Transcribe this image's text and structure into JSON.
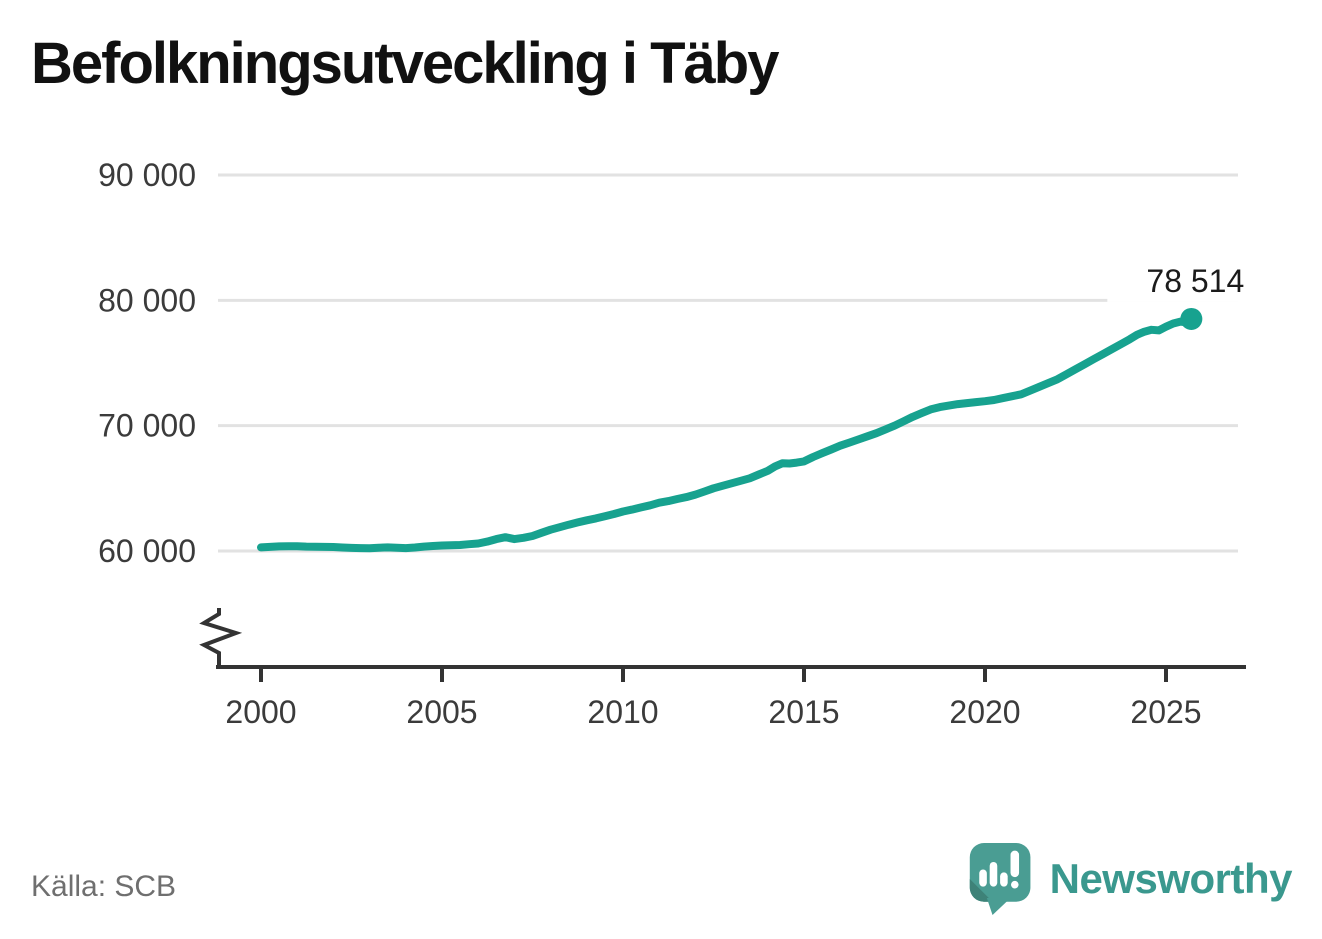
{
  "title": "Befolkningsutveckling i Täby",
  "source": "Källa: SCB",
  "brand": {
    "name": "Newsworthy"
  },
  "colors": {
    "line": "#17A28F",
    "grid": "#E2E2E2",
    "axis": "#333333",
    "tick_text": "#3B3B3B",
    "label_text": "#1B1B1B",
    "muted_text": "#6F6F6F",
    "logo_bubble": "#4A9D93",
    "logo_bubble_shade": "#3E8278",
    "brand_text": "#3A988E"
  },
  "chart_data": {
    "type": "line",
    "title": "Befolkningsutveckling i Täby",
    "xlabel": "",
    "ylabel": "",
    "grid": "horizontal",
    "axis_break_at_bottom": true,
    "legend": "none",
    "xlim": [
      1998.8,
      2027.3
    ],
    "ylim_displayed": [
      60000,
      90000
    ],
    "yticks": [
      {
        "value": 60000,
        "label": "60 000"
      },
      {
        "value": 70000,
        "label": "70 000"
      },
      {
        "value": 80000,
        "label": "80 000"
      },
      {
        "value": 90000,
        "label": "90 000"
      }
    ],
    "xticks": [
      {
        "value": 2000,
        "label": "2000"
      },
      {
        "value": 2005,
        "label": "2005"
      },
      {
        "value": 2010,
        "label": "2010"
      },
      {
        "value": 2015,
        "label": "2015"
      },
      {
        "value": 2020,
        "label": "2020"
      },
      {
        "value": 2025,
        "label": "2025"
      }
    ],
    "end_label": "78 514",
    "end_value": 78514,
    "series": [
      {
        "color": "#17A28F",
        "points": [
          [
            2000.0,
            60290
          ],
          [
            2000.25,
            60330
          ],
          [
            2000.5,
            60370
          ],
          [
            2000.75,
            60385
          ],
          [
            2001.0,
            60380
          ],
          [
            2001.25,
            60350
          ],
          [
            2001.5,
            60340
          ],
          [
            2001.75,
            60330
          ],
          [
            2002.0,
            60320
          ],
          [
            2002.25,
            60280
          ],
          [
            2002.5,
            60250
          ],
          [
            2002.75,
            60230
          ],
          [
            2003.0,
            60220
          ],
          [
            2003.25,
            60260
          ],
          [
            2003.5,
            60290
          ],
          [
            2003.75,
            60260
          ],
          [
            2004.0,
            60230
          ],
          [
            2004.25,
            60280
          ],
          [
            2004.5,
            60350
          ],
          [
            2004.75,
            60400
          ],
          [
            2005.0,
            60440
          ],
          [
            2005.25,
            60460
          ],
          [
            2005.5,
            60480
          ],
          [
            2005.75,
            60540
          ],
          [
            2006.0,
            60600
          ],
          [
            2006.25,
            60750
          ],
          [
            2006.5,
            60950
          ],
          [
            2006.75,
            61100
          ],
          [
            2007.0,
            60950
          ],
          [
            2007.25,
            61050
          ],
          [
            2007.5,
            61200
          ],
          [
            2007.75,
            61450
          ],
          [
            2008.0,
            61700
          ],
          [
            2008.25,
            61900
          ],
          [
            2008.5,
            62100
          ],
          [
            2008.75,
            62280
          ],
          [
            2009.0,
            62450
          ],
          [
            2009.25,
            62600
          ],
          [
            2009.5,
            62780
          ],
          [
            2009.75,
            62950
          ],
          [
            2010.0,
            63150
          ],
          [
            2010.25,
            63300
          ],
          [
            2010.5,
            63480
          ],
          [
            2010.75,
            63650
          ],
          [
            2011.0,
            63850
          ],
          [
            2011.25,
            63980
          ],
          [
            2011.5,
            64150
          ],
          [
            2011.75,
            64300
          ],
          [
            2012.0,
            64500
          ],
          [
            2012.25,
            64750
          ],
          [
            2012.5,
            65000
          ],
          [
            2012.75,
            65200
          ],
          [
            2013.0,
            65400
          ],
          [
            2013.25,
            65600
          ],
          [
            2013.5,
            65800
          ],
          [
            2013.75,
            66100
          ],
          [
            2014.0,
            66400
          ],
          [
            2014.2,
            66750
          ],
          [
            2014.4,
            67000
          ],
          [
            2014.6,
            66980
          ],
          [
            2014.8,
            67050
          ],
          [
            2015.0,
            67150
          ],
          [
            2015.25,
            67500
          ],
          [
            2015.5,
            67800
          ],
          [
            2015.75,
            68100
          ],
          [
            2016.0,
            68400
          ],
          [
            2016.25,
            68650
          ],
          [
            2016.5,
            68900
          ],
          [
            2016.75,
            69150
          ],
          [
            2017.0,
            69400
          ],
          [
            2017.25,
            69700
          ],
          [
            2017.5,
            70000
          ],
          [
            2017.75,
            70350
          ],
          [
            2018.0,
            70700
          ],
          [
            2018.25,
            71000
          ],
          [
            2018.5,
            71300
          ],
          [
            2018.75,
            71480
          ],
          [
            2019.0,
            71600
          ],
          [
            2019.25,
            71720
          ],
          [
            2019.5,
            71800
          ],
          [
            2019.75,
            71880
          ],
          [
            2020.0,
            71950
          ],
          [
            2020.25,
            72050
          ],
          [
            2020.5,
            72200
          ],
          [
            2020.75,
            72350
          ],
          [
            2021.0,
            72500
          ],
          [
            2021.25,
            72800
          ],
          [
            2021.5,
            73100
          ],
          [
            2021.75,
            73400
          ],
          [
            2022.0,
            73700
          ],
          [
            2022.25,
            74100
          ],
          [
            2022.5,
            74500
          ],
          [
            2022.75,
            74900
          ],
          [
            2023.0,
            75300
          ],
          [
            2023.25,
            75700
          ],
          [
            2023.5,
            76100
          ],
          [
            2023.75,
            76500
          ],
          [
            2024.0,
            76900
          ],
          [
            2024.2,
            77250
          ],
          [
            2024.4,
            77500
          ],
          [
            2024.6,
            77650
          ],
          [
            2024.8,
            77600
          ],
          [
            2025.0,
            77900
          ],
          [
            2025.2,
            78150
          ],
          [
            2025.4,
            78300
          ],
          [
            2025.55,
            78250
          ],
          [
            2025.7,
            78514
          ]
        ]
      }
    ]
  }
}
